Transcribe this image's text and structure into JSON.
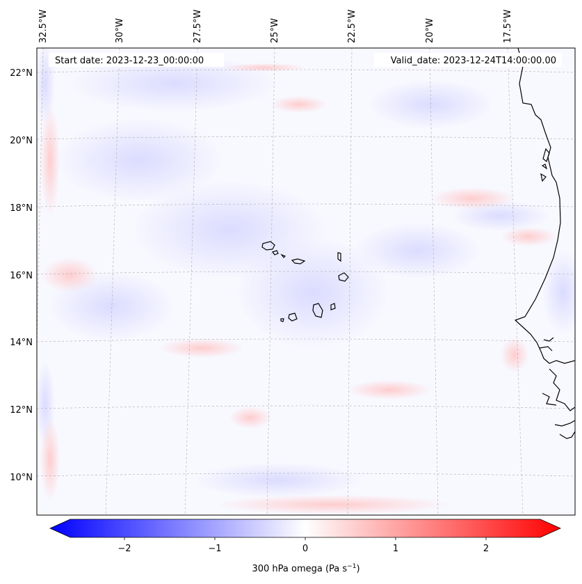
{
  "header": {
    "start_date": "Start date: 2023-12-23_00:00:00",
    "valid_date": "Valid_date: 2023-12-24T14:00:00.00"
  },
  "map": {
    "longitude_labels": [
      "32.5°W",
      "30°W",
      "27.5°W",
      "25°W",
      "22.5°W",
      "20°W",
      "17.5°W"
    ],
    "latitude_labels": [
      "22°N",
      "20°N",
      "18°N",
      "16°N",
      "14°N",
      "12°N",
      "10°N"
    ],
    "field": "300 hPa omega",
    "coastline": "West African coast and Cape Verde islands"
  },
  "colorbar": {
    "label": "300 hPa omega (Pa s",
    "label_superscript": "−1",
    "label_suffix": ")",
    "ticks": [
      "−2",
      "−1",
      "0",
      "1",
      "2"
    ],
    "tick_values": [
      -2,
      -1,
      0,
      1,
      2
    ],
    "range": [
      -2.6,
      2.6
    ],
    "colormap": "bwr",
    "low_color": "#0000ff",
    "mid_color": "#ffffff",
    "high_color": "#ff0000"
  }
}
